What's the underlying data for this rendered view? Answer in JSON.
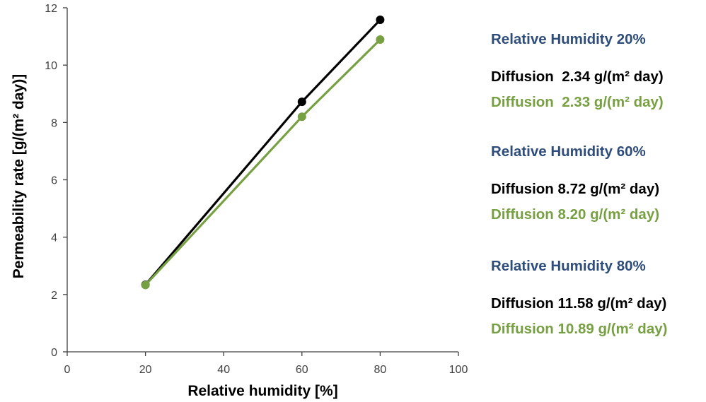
{
  "chart_data": {
    "type": "line",
    "xlabel": "Relative humidity [%]",
    "ylabel": "Permeability rate [g/(m² day)]",
    "xlim": [
      0,
      100
    ],
    "ylim": [
      0,
      12
    ],
    "xticks": [
      0,
      20,
      40,
      60,
      80,
      100
    ],
    "yticks": [
      0,
      2,
      4,
      6,
      8,
      10,
      12
    ],
    "grid": false,
    "x": [
      20,
      60,
      80
    ],
    "series": [
      {
        "color": "#000000",
        "values": [
          2.34,
          8.72,
          11.58
        ]
      },
      {
        "color": "#77a042",
        "values": [
          2.33,
          8.2,
          10.89
        ]
      }
    ]
  },
  "annotations": [
    {
      "text": "Relative Humidity 20%",
      "color": "#2e4d7b"
    },
    {
      "text": "Diffusion  2.34 g/(m² day)",
      "color": "#000000"
    },
    {
      "text": "Diffusion  2.33 g/(m² day)",
      "color": "#77a042"
    },
    {
      "text": "Relative Humidity 60%",
      "color": "#2e4d7b"
    },
    {
      "text": "Diffusion 8.72 g/(m² day)",
      "color": "#000000"
    },
    {
      "text": "Diffusion 8.20 g/(m² day)",
      "color": "#77a042"
    },
    {
      "text": "Relative Humidity 80%",
      "color": "#2e4d7b"
    },
    {
      "text": "Diffusion 11.58 g/(m² day)",
      "color": "#000000"
    },
    {
      "text": "Diffusion 10.89 g/(m² day)",
      "color": "#77a042"
    }
  ]
}
